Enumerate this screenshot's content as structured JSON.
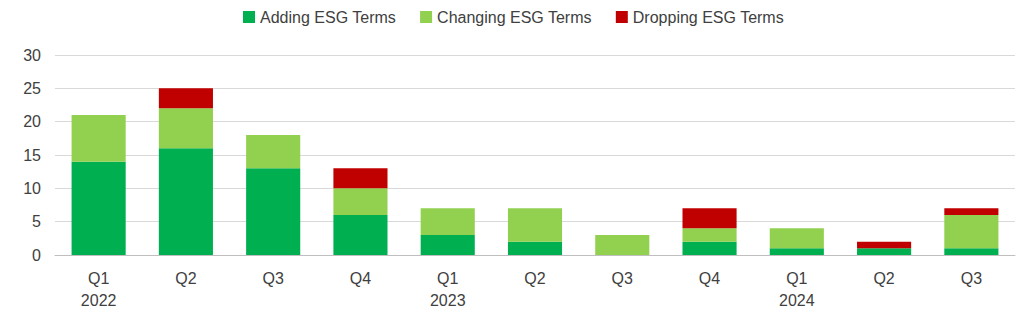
{
  "chart_data": {
    "type": "bar",
    "stacked": true,
    "categories": [
      "Q1\n2022",
      "Q2",
      "Q3",
      "Q4",
      "Q1\n2023",
      "Q2",
      "Q3",
      "Q4",
      "Q1\n2024",
      "Q2",
      "Q3"
    ],
    "series": [
      {
        "name": "Adding ESG Terms",
        "color": "#00b050",
        "values": [
          14,
          16,
          13,
          6,
          3,
          2,
          0,
          2,
          1,
          1,
          1
        ]
      },
      {
        "name": "Changing ESG Terms",
        "color": "#92d050",
        "values": [
          7,
          6,
          5,
          4,
          4,
          5,
          3,
          2,
          3,
          0,
          5
        ]
      },
      {
        "name": "Dropping ESG Terms",
        "color": "#c00000",
        "values": [
          0,
          3,
          0,
          3,
          0,
          0,
          0,
          3,
          0,
          1,
          1
        ]
      }
    ],
    "ylim": [
      0,
      30
    ],
    "yticks": [
      0,
      5,
      10,
      15,
      20,
      25,
      30
    ],
    "grid": true,
    "legend": "top"
  }
}
